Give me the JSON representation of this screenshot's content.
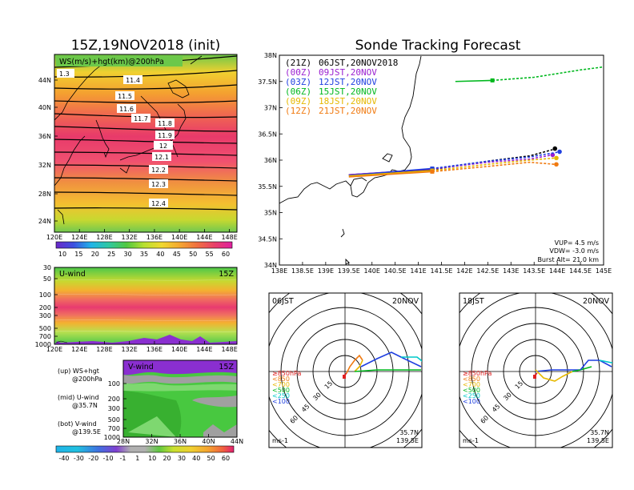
{
  "left_title": "15Z,19NOV2018 (init)",
  "right_title": "Sonde Tracking Forecast",
  "panel_top": {
    "label": "WS(m/s)+hgt(km)@200hPa",
    "corner_value": "1.3",
    "lat_ticks": [
      "44N",
      "40N",
      "36N",
      "32N",
      "28N",
      "24N"
    ],
    "lon_ticks": [
      "120E",
      "124E",
      "128E",
      "132E",
      "136E",
      "140E",
      "144E",
      "148E"
    ],
    "contour_labels": [
      "11.4",
      "11.5",
      "11.6",
      "11.7",
      "11.8",
      "11.9",
      "12",
      "12.1",
      "12.2",
      "12.3",
      "12.4"
    ]
  },
  "colorbar_top": [
    "10",
    "15",
    "20",
    "25",
    "30",
    "35",
    "40",
    "45",
    "50",
    "55",
    "60"
  ],
  "panel_mid": {
    "label": "U-wind",
    "time": "15Z",
    "y_ticks": [
      "30",
      "50",
      "100",
      "200",
      "300",
      "500",
      "700",
      "1000"
    ],
    "x_ticks": [
      "120E",
      "124E",
      "128E",
      "132E",
      "136E",
      "140E",
      "144E",
      "148E"
    ]
  },
  "panel_bot": {
    "label": "V-wind",
    "time": "15Z",
    "y_ticks": [
      "100",
      "200",
      "300",
      "500",
      "700",
      "1000"
    ],
    "x_ticks": [
      "28N",
      "32N",
      "36N",
      "40N",
      "44N"
    ]
  },
  "colorbar_bot": [
    "-40",
    "-30",
    "-20",
    "-10",
    "-1",
    "1",
    "10",
    "20",
    "30",
    "40",
    "50",
    "60"
  ],
  "legend_notes": [
    {
      "a": "(up) WS+hgt",
      "b": "@200hPa"
    },
    {
      "a": "(mid) U-wind",
      "b": "@35.7N"
    },
    {
      "a": "(bot) V-wind",
      "b": "@139.5E"
    }
  ],
  "track_map": {
    "lat_ticks": [
      "38N",
      "37.5N",
      "37N",
      "36.5N",
      "36N",
      "35.5N",
      "35N",
      "34.5N",
      "34N"
    ],
    "lon_ticks": [
      "138E",
      "138.5E",
      "139E",
      "139.5E",
      "140E",
      "140.5E",
      "141E",
      "141.5E",
      "142E",
      "142.5E",
      "143E",
      "143.5E",
      "144E",
      "144.5E",
      "145E"
    ],
    "legend": [
      {
        "z": "(21Z)",
        "t": "06JST,20NOV2018",
        "color": "#000000"
      },
      {
        "z": "(00Z)",
        "t": "09JST,20NOV",
        "color": "#9a1fd0"
      },
      {
        "z": "(03Z)",
        "t": "12JST,20NOV",
        "color": "#1f3fe0"
      },
      {
        "z": "(06Z)",
        "t": "15JST,20NOV",
        "color": "#00b81e"
      },
      {
        "z": "(09Z)",
        "t": "18JST,20NOV",
        "color": "#e6b800"
      },
      {
        "z": "(12Z)",
        "t": "21JST,20NOV",
        "color": "#f07a10"
      }
    ],
    "params": [
      "VUP=  4.5 m/s",
      "VDW= -3.0 m/s",
      "Burst Alt= 21.0 km"
    ]
  },
  "hodo_left": {
    "time": "06JST",
    "date": "20NOV",
    "unit": "ms-1",
    "lat": "35.7N",
    "lon": "139.5E",
    "ring_labels": [
      "15",
      "30",
      "45",
      "60"
    ],
    "levels": [
      {
        "t": "≥850hPa",
        "c": "#e02020"
      },
      {
        "t": "<850",
        "c": "#f07a10"
      },
      {
        "t": "<700",
        "c": "#e6b800"
      },
      {
        "t": "<500",
        "c": "#00b81e"
      },
      {
        "t": "<250",
        "c": "#00c8c8"
      },
      {
        "t": "<100",
        "c": "#1f3fe0"
      }
    ]
  },
  "hodo_right": {
    "time": "18JST",
    "date": "20NOV",
    "unit": "ms-1",
    "lat": "35.7N",
    "lon": "139.5E",
    "ring_labels": [
      "15",
      "30",
      "45",
      "60"
    ],
    "levels": [
      {
        "t": "≥850hPa",
        "c": "#e02020"
      },
      {
        "t": "<850",
        "c": "#f07a10"
      },
      {
        "t": "<700",
        "c": "#e6b800"
      },
      {
        "t": "<500",
        "c": "#00b81e"
      },
      {
        "t": "<250",
        "c": "#00c8c8"
      },
      {
        "t": "<100",
        "c": "#1f3fe0"
      }
    ]
  }
}
